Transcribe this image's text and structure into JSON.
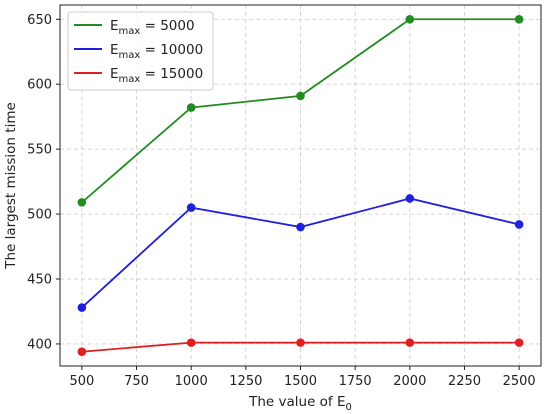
{
  "chart_data": {
    "type": "line",
    "x": [
      500,
      1000,
      1500,
      2000,
      2500
    ],
    "series": [
      {
        "name": "5000",
        "color": "#228b22",
        "values": [
          509,
          582,
          591,
          650,
          650
        ]
      },
      {
        "name": "10000",
        "color": "#1f1fdd",
        "values": [
          428,
          505,
          490,
          512,
          492
        ]
      },
      {
        "name": "15000",
        "color": "#e02020",
        "values": [
          394,
          401,
          401,
          401,
          401
        ]
      }
    ],
    "legend_prefix": "E",
    "legend_subscript": "max",
    "legend_eq": " = ",
    "xlabel_main": "The value of E",
    "xlabel_sub": "0",
    "ylabel": "The largest mission time",
    "xticks": [
      500,
      750,
      1000,
      1250,
      1500,
      1750,
      2000,
      2250,
      2500
    ],
    "yticks": [
      400,
      450,
      500,
      550,
      600,
      650
    ],
    "xlim": [
      400,
      2600
    ],
    "ylim": [
      383,
      661
    ],
    "grid": true,
    "legend_position": "top-left"
  }
}
